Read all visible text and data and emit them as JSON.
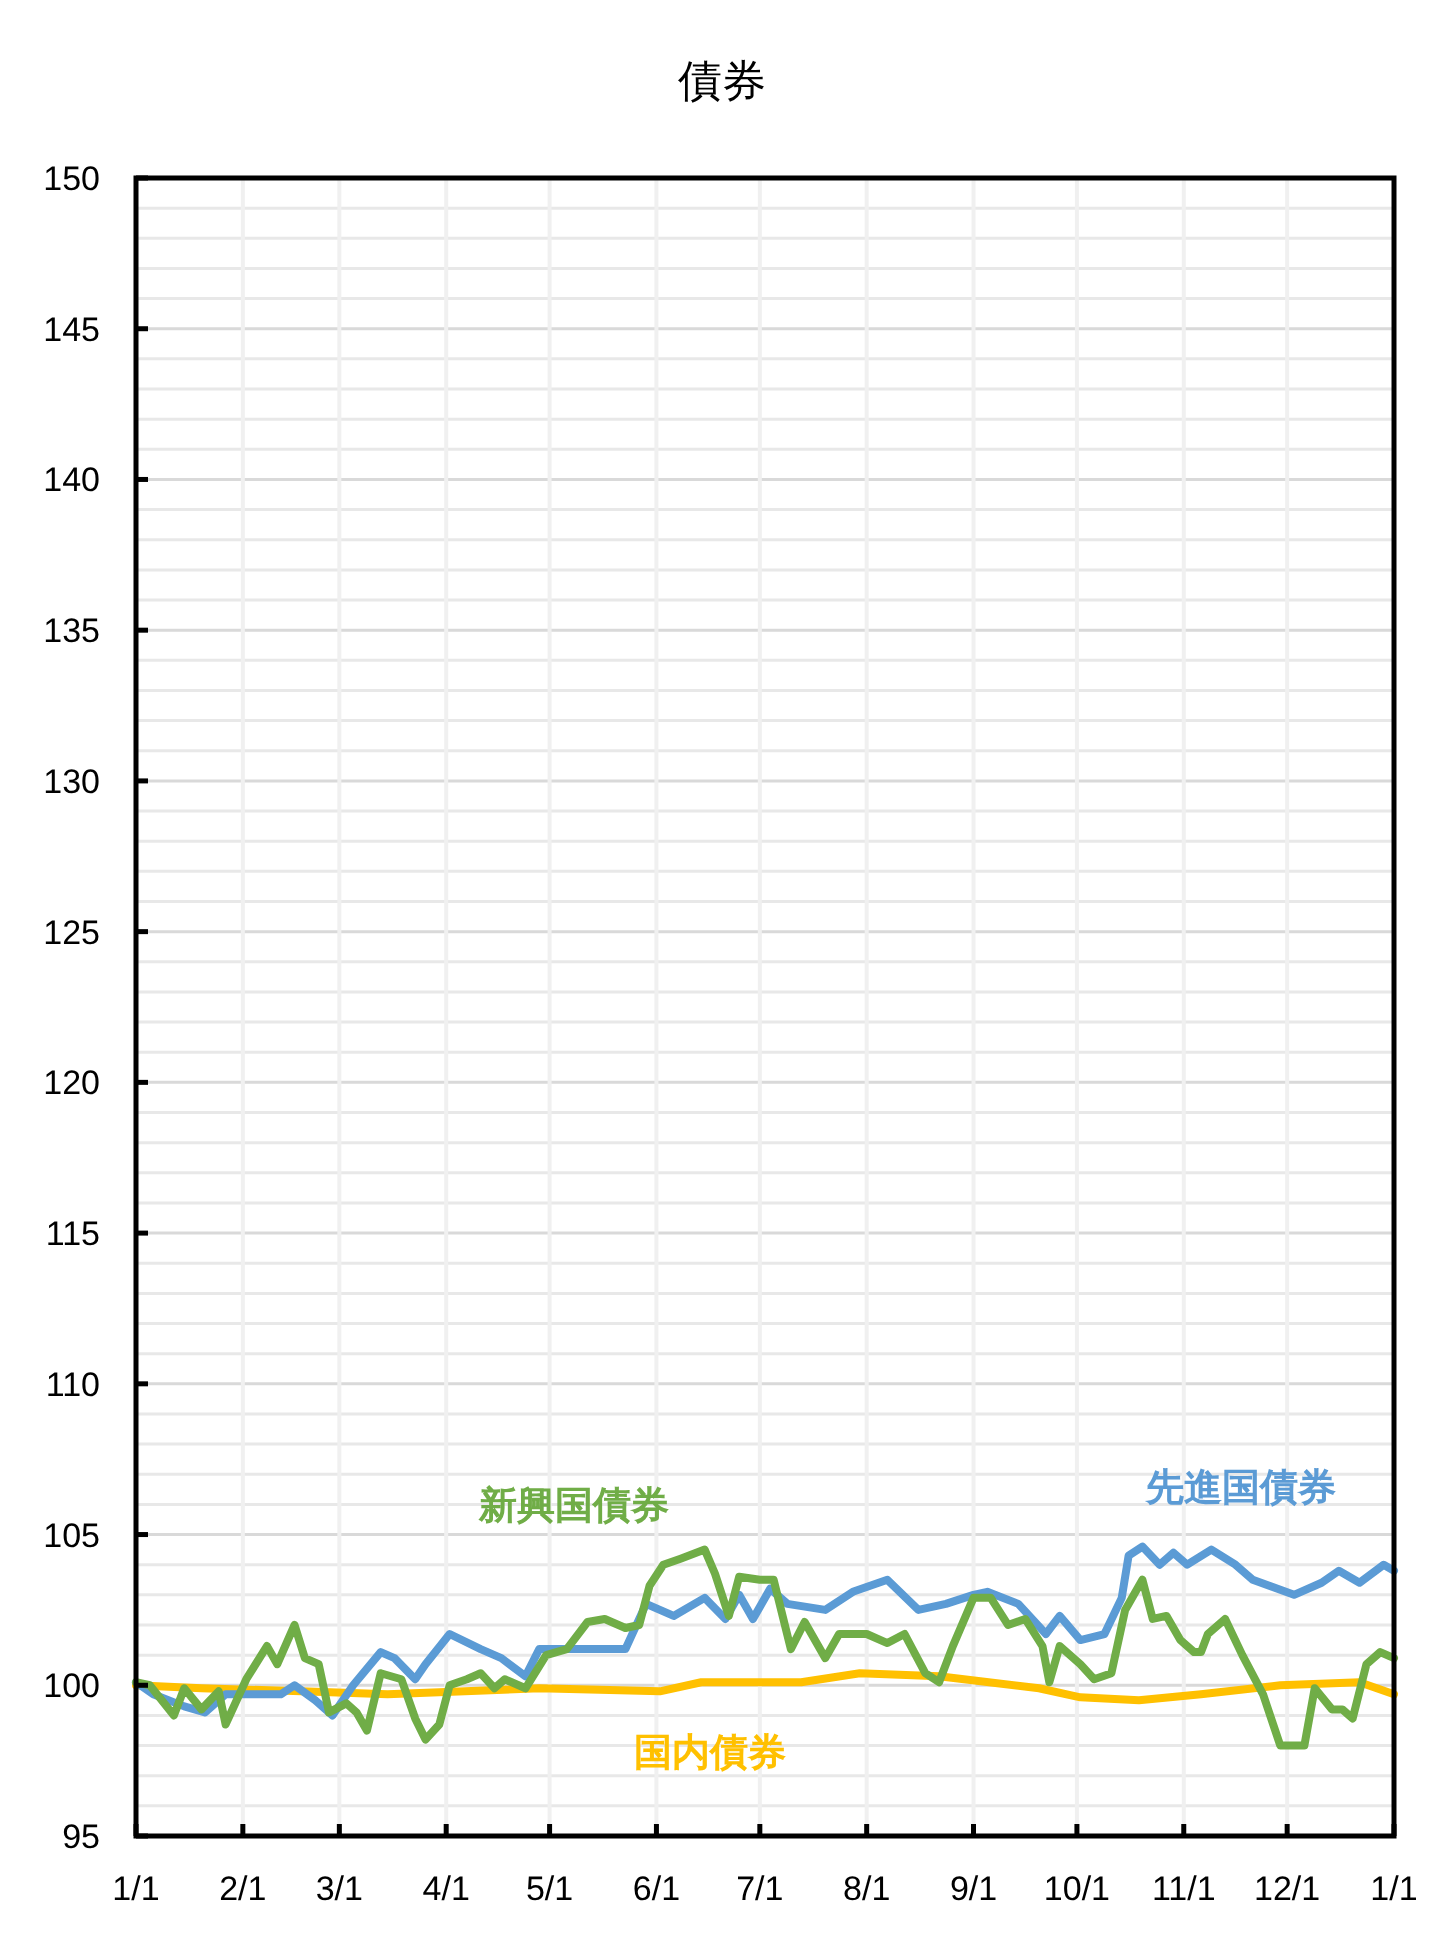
{
  "chart_data": {
    "type": "line",
    "title": "債券",
    "xlim": [
      "2001-01-01",
      "2002-01-01"
    ],
    "ylim": [
      95,
      150
    ],
    "xticks": [
      {
        "value": "--01-01",
        "label": "1/1"
      },
      {
        "value": "--02-01",
        "label": "2/1"
      },
      {
        "value": "--03-01",
        "label": "3/1"
      },
      {
        "value": "--04-01",
        "label": "4/1"
      },
      {
        "value": "--05-01",
        "label": "5/1"
      },
      {
        "value": "--06-01",
        "label": "6/1"
      },
      {
        "value": "--07-01",
        "label": "7/1"
      },
      {
        "value": "--08-01",
        "label": "8/1"
      },
      {
        "value": "--09-01",
        "label": "9/1"
      },
      {
        "value": "--10-01",
        "label": "10/1"
      },
      {
        "value": "--11-01",
        "label": "11/1"
      },
      {
        "value": "--12-01",
        "label": "12/1"
      },
      {
        "value": "2002-01-01",
        "label": "1/1"
      }
    ],
    "yticks": [
      95,
      {
        "value": 96,
        "label": null
      },
      {
        "value": 97,
        "label": null
      },
      {
        "value": 98,
        "label": null
      },
      {
        "value": 99,
        "label": null
      },
      100,
      {
        "value": 101,
        "label": null
      },
      {
        "value": 102,
        "label": null
      },
      {
        "value": 103,
        "label": null
      },
      {
        "value": 104,
        "label": null
      },
      105,
      {
        "value": 106,
        "label": null
      },
      {
        "value": 107,
        "label": null
      },
      {
        "value": 108,
        "label": null
      },
      {
        "value": 109,
        "label": null
      },
      110,
      {
        "value": 111,
        "label": null
      },
      {
        "value": 112,
        "label": null
      },
      {
        "value": 113,
        "label": null
      },
      {
        "value": 114,
        "label": null
      },
      115,
      {
        "value": 116,
        "label": null
      },
      {
        "value": 117,
        "label": null
      },
      {
        "value": 118,
        "label": null
      },
      {
        "value": 119,
        "label": null
      },
      120,
      {
        "value": 121,
        "label": null
      },
      {
        "value": 122,
        "label": null
      },
      {
        "value": 123,
        "label": null
      },
      {
        "value": 124,
        "label": null
      },
      125,
      {
        "value": 126,
        "label": null
      },
      {
        "value": 127,
        "label": null
      },
      {
        "value": 128,
        "label": null
      },
      {
        "value": 129,
        "label": null
      },
      130,
      {
        "value": 131,
        "label": null
      },
      {
        "value": 132,
        "label": null
      },
      {
        "value": 133,
        "label": null
      },
      {
        "value": 134,
        "label": null
      },
      135,
      {
        "value": 136,
        "label": null
      },
      {
        "value": 137,
        "label": null
      },
      {
        "value": 138,
        "label": null
      },
      {
        "value": 139,
        "label": null
      },
      140,
      {
        "value": 141,
        "label": null
      },
      {
        "value": 142,
        "label": null
      },
      {
        "value": 143,
        "label": null
      },
      {
        "value": 144,
        "label": null
      },
      145,
      {
        "value": 146,
        "label": null
      },
      {
        "value": 147,
        "label": null
      },
      {
        "value": 148,
        "label": null
      },
      {
        "value": 149,
        "label": null
      },
      150
    ],
    "grid": true,
    "marker": "none",
    "line_style": "solid",
    "series": [
      {
        "name": "先進国債券",
        "color": "#5b9bd5",
        "x": [
          "--01-01",
          "--01-06",
          "--01-15",
          "--01-21",
          "--01-27",
          "--02-04",
          "--02-12",
          "--02-16",
          "--02-22",
          "--02-27",
          "--03-05",
          "--03-13",
          "--03-17",
          "--03-23",
          "--03-26",
          "--04-02",
          "--04-11",
          "--04-17",
          "--04-24",
          "--04-28",
          "--05-10",
          "--05-23",
          "--05-29",
          "--06-06",
          "--06-15",
          "--06-21",
          "--06-25",
          "--06-29",
          "--07-04",
          "--07-09",
          "--07-20",
          "--07-28",
          "--08-07",
          "--08-16",
          "--08-24",
          "--09-01",
          "--09-05",
          "--09-14",
          "--09-22",
          "--09-26",
          "--10-02",
          "--10-09",
          "--10-14",
          "--10-16",
          "--10-20",
          "--10-25",
          "--10-29",
          "--11-02",
          "--11-09",
          "--11-16",
          "--11-21",
          "--12-03",
          "--12-11",
          "--12-16",
          "--12-22",
          "--12-29",
          "2002-01-01"
        ],
        "values": [
          100.1,
          99.7,
          99.3,
          99.1,
          99.7,
          99.7,
          99.7,
          100,
          99.5,
          99.0,
          100,
          101.1,
          100.9,
          100.2,
          100.7,
          101.7,
          101.2,
          100.9,
          100.3,
          101.2,
          101.2,
          101.2,
          102.7,
          102.3,
          102.9,
          102.2,
          103,
          102.2,
          103.2,
          102.7,
          102.5,
          103.1,
          103.5,
          102.5,
          102.7,
          103,
          103.1,
          102.7,
          101.7,
          102.3,
          101.5,
          101.7,
          102.9,
          104.3,
          104.6,
          104,
          104.4,
          104,
          104.5,
          104,
          103.5,
          103,
          103.4,
          103.8,
          103.4,
          104,
          103.8
        ]
      },
      {
        "name": "新興国債券",
        "color": "#70ad47",
        "x": [
          "--01-01",
          "--01-05",
          "--01-12",
          "--01-15",
          "--01-20",
          "--01-25",
          "--01-27",
          "--02-02",
          "--02-08",
          "--02-11",
          "--02-16",
          "--02-19",
          "--02-23",
          "--02-26",
          "--03-03",
          "--03-06",
          "--03-09",
          "--03-13",
          "--03-19",
          "--03-23",
          "--03-26",
          "--03-30",
          "--04-02",
          "--04-07",
          "--04-11",
          "--04-15",
          "--04-18",
          "--04-24",
          "--04-30",
          "--05-06",
          "--05-12",
          "--05-17",
          "--05-23",
          "--05-27",
          "--05-30",
          "--06-03",
          "--06-08",
          "--06-15",
          "--06-18",
          "--06-22",
          "--06-25",
          "--07-01",
          "--07-05",
          "--07-10",
          "--07-14",
          "--07-20",
          "--07-24",
          "--08-01",
          "--08-07",
          "--08-12",
          "--08-18",
          "--08-22",
          "--08-26",
          "--09-01",
          "--09-06",
          "--09-11",
          "--09-16",
          "--09-21",
          "--09-23",
          "--09-26",
          "--10-02",
          "--10-06",
          "--10-11",
          "--10-15",
          "--10-20",
          "--10-23",
          "--10-27",
          "--10-31",
          "--11-04",
          "--11-06",
          "--11-08",
          "--11-13",
          "--11-18",
          "--11-24",
          "--11-29",
          "--12-06",
          "--12-09",
          "--12-14",
          "--12-17",
          "--12-20",
          "--12-24",
          "--12-28",
          "2002-01-01"
        ],
        "values": [
          100.1,
          100,
          99,
          99.9,
          99.2,
          99.8,
          98.7,
          100.2,
          101.3,
          100.7,
          102,
          100.9,
          100.7,
          99.1,
          99.4,
          99.1,
          98.5,
          100.4,
          100.2,
          98.9,
          98.2,
          98.7,
          100,
          100.2,
          100.4,
          99.9,
          100.2,
          99.9,
          101,
          101.2,
          102.1,
          102.2,
          101.9,
          102,
          103.3,
          104,
          104.2,
          104.5,
          103.7,
          102.3,
          103.6,
          103.5,
          103.5,
          101.2,
          102.1,
          100.9,
          101.7,
          101.7,
          101.4,
          101.7,
          100.4,
          100.1,
          101.3,
          102.9,
          102.9,
          102,
          102.2,
          101.3,
          100.1,
          101.3,
          100.7,
          100.2,
          100.4,
          102.5,
          103.5,
          102.2,
          102.3,
          101.5,
          101.1,
          101.1,
          101.7,
          102.2,
          101,
          99.7,
          98,
          98,
          99.9,
          99.2,
          99.2,
          98.9,
          100.7,
          101.1,
          100.9
        ]
      },
      {
        "name": "国内債券",
        "color": "#ffc000",
        "x": [
          "--01-01",
          "--01-20",
          "--02-18",
          "--03-15",
          "--04-28",
          "--06-02",
          "--06-14",
          "--07-13",
          "--07-30",
          "--08-22",
          "--09-20",
          "--10-02",
          "--10-19",
          "--11-06",
          "--11-29",
          "--12-22",
          "2002-01-01"
        ],
        "values": [
          100,
          99.9,
          99.8,
          99.7,
          99.9,
          99.8,
          100.1,
          100.1,
          100.4,
          100.3,
          99.9,
          99.6,
          99.5,
          99.7,
          100,
          100.1,
          99.7
        ]
      }
    ]
  }
}
